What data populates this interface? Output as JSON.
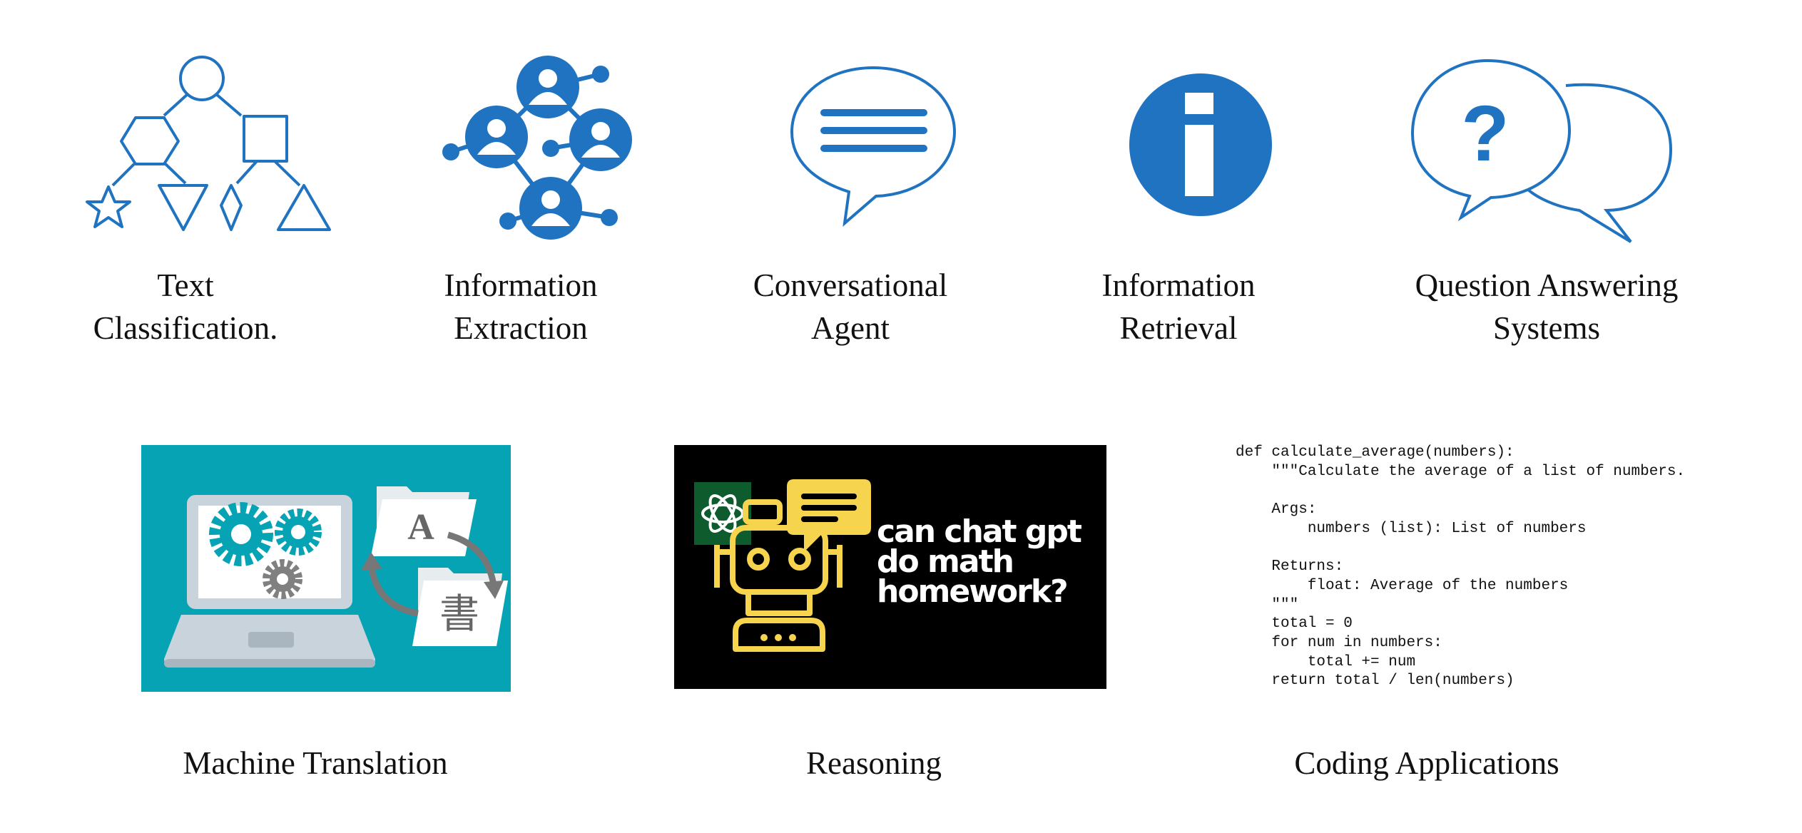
{
  "colors": {
    "icon_blue": "#1f73c0",
    "teal": "#06a3b5",
    "black": "#000000",
    "yellow": "#f7d44e",
    "openai_green": "#0e5b2e",
    "gray": "#808080"
  },
  "row1": [
    {
      "icon": "hierarchy-shapes-icon",
      "line1": "Text",
      "line2": "Classification."
    },
    {
      "icon": "people-network-icon",
      "line1": "Information",
      "line2": "Extraction"
    },
    {
      "icon": "speech-bubble-icon",
      "line1": "Conversational",
      "line2": "Agent"
    },
    {
      "icon": "info-icon",
      "line1": "Information",
      "line2": "Retrieval"
    },
    {
      "icon": "question-bubbles-icon",
      "line1": "Question Answering",
      "line2": "Systems"
    }
  ],
  "row2": {
    "translation": {
      "label": "Machine Translation",
      "letter_a": "A",
      "letter_cjk": "書"
    },
    "reasoning": {
      "label": "Reasoning",
      "caption_line1": "can chat gpt",
      "caption_line2": "do math",
      "caption_line3": "homework?"
    },
    "coding": {
      "label": "Coding Applications",
      "code_lines": [
        "def calculate_average(numbers):",
        "    \"\"\"Calculate the average of a list of numbers.",
        "",
        "    Args:",
        "        numbers (list): List of numbers",
        "",
        "    Returns:",
        "        float: Average of the numbers",
        "    \"\"\"",
        "    total = 0",
        "    for num in numbers:",
        "        total += num",
        "    return total / len(numbers)"
      ]
    }
  }
}
